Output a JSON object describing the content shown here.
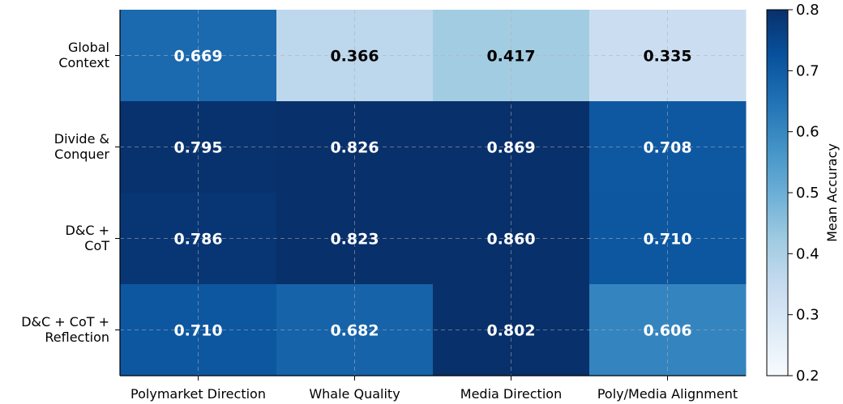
{
  "chart_data": {
    "type": "heatmap",
    "title": "",
    "xlabel": "",
    "ylabel": "",
    "x_categories": [
      "Polymarket Direction",
      "Whale Quality",
      "Media Direction",
      "Poly/Media Alignment"
    ],
    "y_categories": [
      [
        "Global",
        "Context"
      ],
      [
        "Divide &",
        "Conquer"
      ],
      [
        "D&C +",
        "CoT"
      ],
      [
        "D&C + CoT +",
        "Reflection"
      ]
    ],
    "values": [
      [
        0.669,
        0.366,
        0.417,
        0.335
      ],
      [
        0.795,
        0.826,
        0.869,
        0.708
      ],
      [
        0.786,
        0.823,
        0.86,
        0.71
      ],
      [
        0.71,
        0.682,
        0.802,
        0.606
      ]
    ],
    "value_labels": [
      [
        "0.669",
        "0.366",
        "0.417",
        "0.335"
      ],
      [
        "0.795",
        "0.826",
        "0.869",
        "0.708"
      ],
      [
        "0.786",
        "0.823",
        "0.860",
        "0.710"
      ],
      [
        "0.710",
        "0.682",
        "0.802",
        "0.606"
      ]
    ],
    "colorscale": "Blues",
    "color_range": [
      0.2,
      0.8
    ],
    "grid": true,
    "colorbar": {
      "label": "Mean Accuracy",
      "ticks": [
        0.2,
        0.3,
        0.4,
        0.5,
        0.6,
        0.7,
        0.8
      ],
      "tick_labels": [
        "0.2",
        "0.3",
        "0.4",
        "0.5",
        "0.6",
        "0.7",
        "0.8"
      ],
      "position": "right"
    }
  }
}
